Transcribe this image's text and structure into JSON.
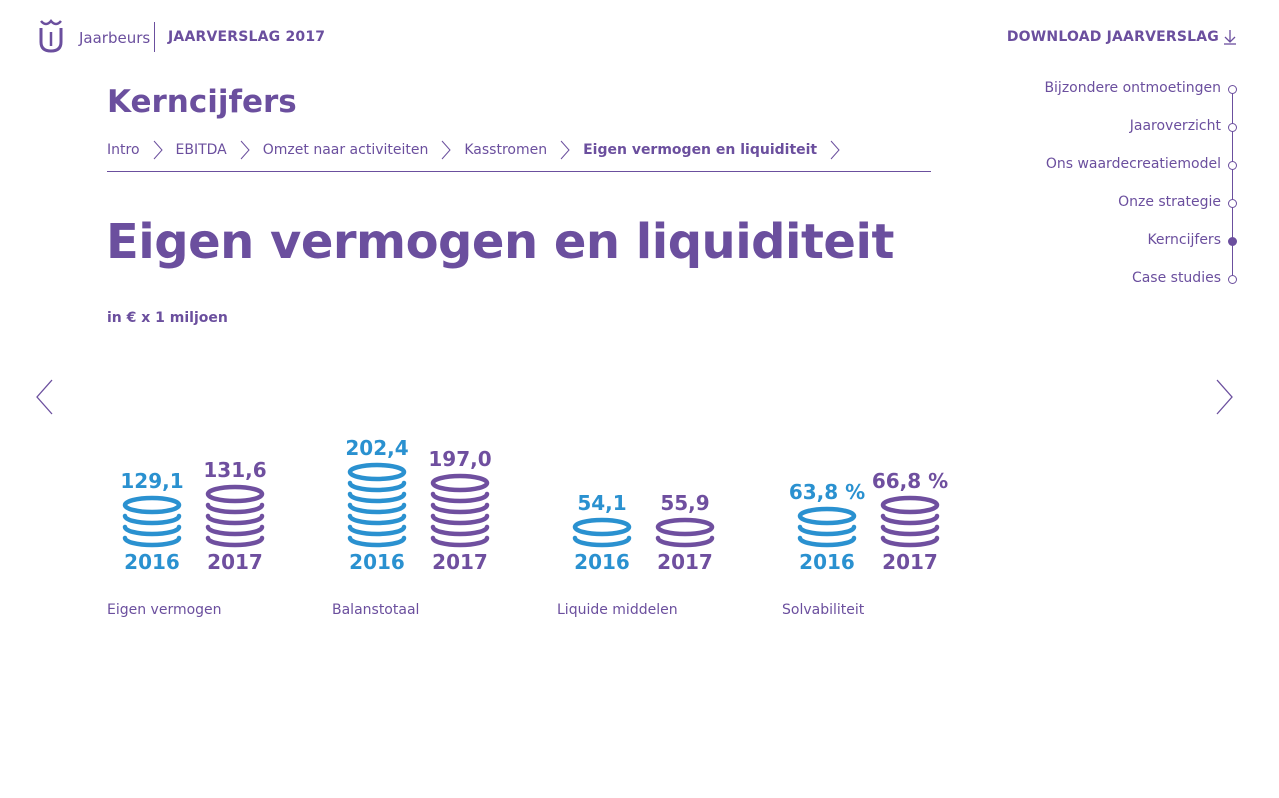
{
  "header": {
    "brand": "Jaarbeurs",
    "report_title": "JAARVERSLAG 2017",
    "download_label": "DOWNLOAD JAARVERSLAG",
    "logo_icon": "jaarbeurs-logo-icon",
    "download_icon": "arrow-down-icon"
  },
  "nav": {
    "items": [
      {
        "label": "Bijzondere ontmoetingen",
        "active": false
      },
      {
        "label": "Jaaroverzicht",
        "active": false
      },
      {
        "label": "Ons waardecreatiemodel",
        "active": false
      },
      {
        "label": "Onze strategie",
        "active": false
      },
      {
        "label": "Kerncijfers",
        "active": true
      },
      {
        "label": "Case studies",
        "active": false
      }
    ]
  },
  "section": {
    "title": "Kerncijfers"
  },
  "breadcrumb": {
    "items": [
      "Intro",
      "EBITDA",
      "Omzet naar activiteiten",
      "Kasstromen",
      "Eigen vermogen en liquiditeit"
    ],
    "current_index": 4
  },
  "page": {
    "title": "Eigen vermogen en liquiditeit",
    "unit": "in € x 1 miljoen"
  },
  "arrows": {
    "prev_icon": "chevron-left-icon",
    "next_icon": "chevron-right-icon"
  },
  "colors": {
    "purple": "#6b4f9e",
    "blue_2016": "#2a91d0",
    "purple_2017": "#6f4f9f"
  },
  "chart_data": {
    "type": "bar",
    "categories": [
      "Eigen vermogen",
      "Balanstotaal",
      "Liquide middelen",
      "Solvabiliteit"
    ],
    "series": [
      {
        "name": "2016",
        "values": [
          129.1,
          202.4,
          54.1,
          63.8
        ],
        "labels": [
          "129,1",
          "202,4",
          "54,1",
          "63,8 %"
        ],
        "coins": [
          4,
          7,
          2,
          3
        ],
        "color": "#2a91d0"
      },
      {
        "name": "2017",
        "values": [
          131.6,
          197.0,
          55.9,
          66.8
        ],
        "labels": [
          "131,6",
          "197,0",
          "55,9",
          "66,8 %"
        ],
        "coins": [
          5,
          6,
          2,
          4
        ],
        "color": "#6f4f9f"
      }
    ],
    "title": "Eigen vermogen en liquiditeit",
    "ylabel": "in € x 1 miljoen",
    "grid": false
  }
}
